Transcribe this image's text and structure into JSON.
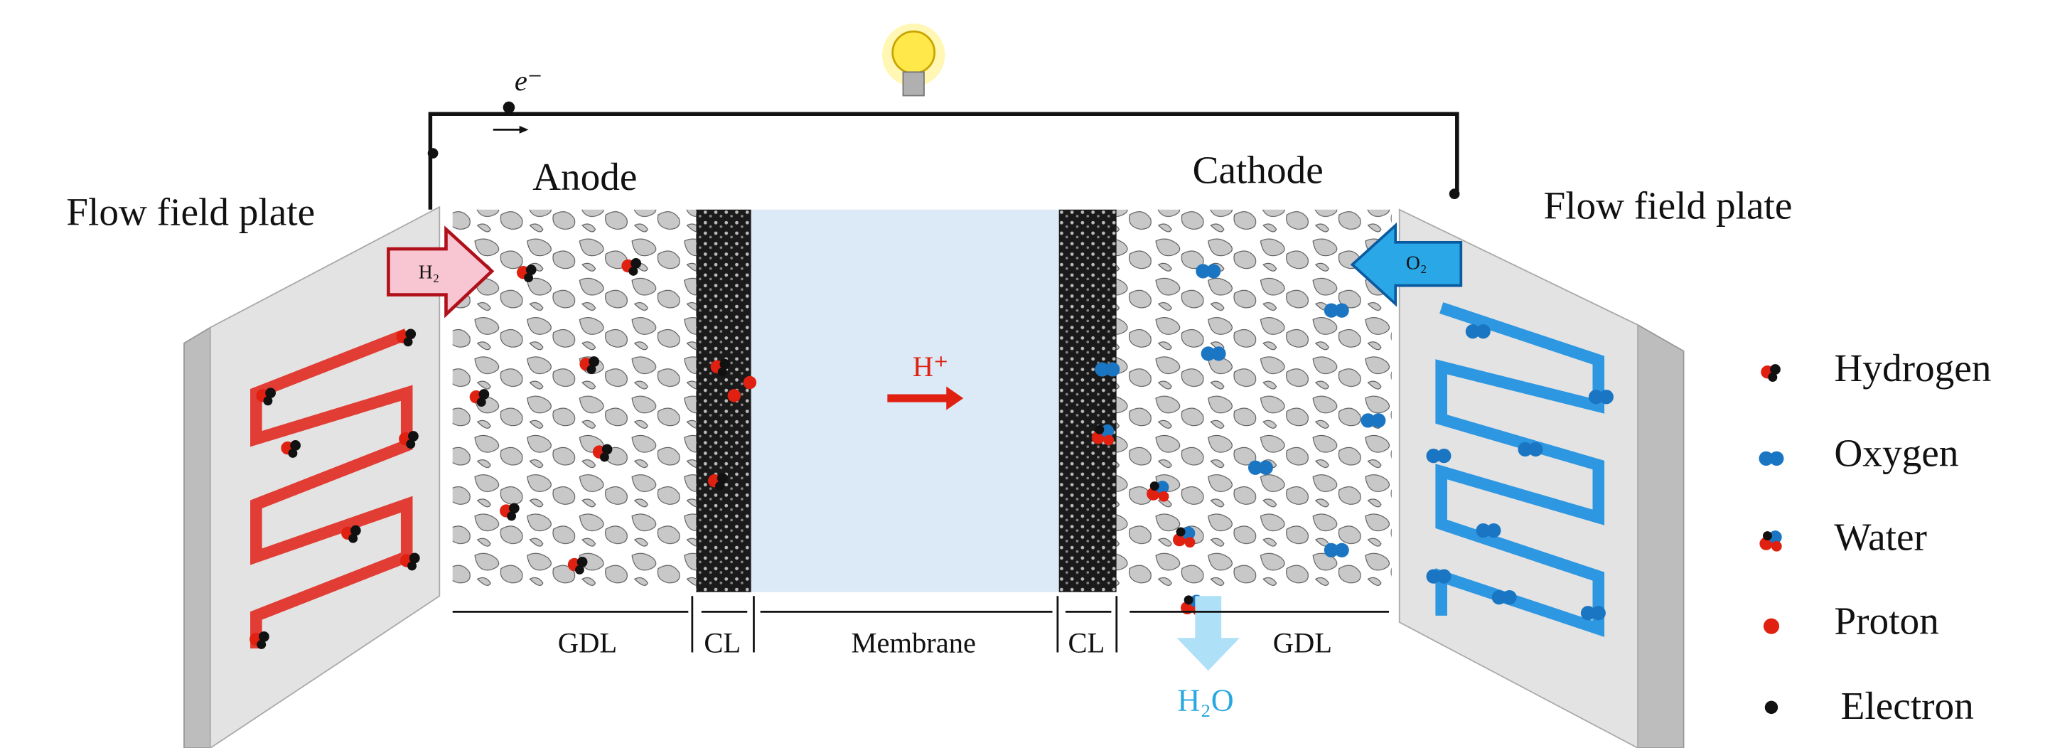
{
  "plates": {
    "left": "Flow field plate",
    "right": "Flow field plate"
  },
  "electrodes": {
    "anode": "Anode",
    "cathode": "Cathode"
  },
  "electron_label": "e⁻",
  "gases": {
    "hydrogen_in": "H₂",
    "oxygen_in": "O₂",
    "proton": "H⁺",
    "water_out": "H₂O"
  },
  "layers": [
    "GDL",
    "CL",
    "Membrane",
    "CL",
    "GDL"
  ],
  "legend": [
    "Hydrogen",
    "Oxygen",
    "Water",
    "Proton",
    "Electron"
  ]
}
